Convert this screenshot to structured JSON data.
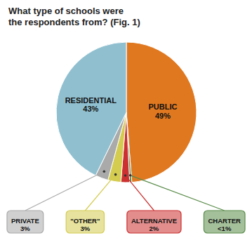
{
  "chart_data": {
    "type": "pie",
    "title": "What type of schools were\nthe respondents from? (Fig. 1)",
    "categories": [
      "PUBLIC",
      "CHARTER",
      "ALTERNATIVE",
      "\"OTHER\"",
      "PRIVATE",
      "RESIDENTIAL"
    ],
    "values": [
      49,
      0.5,
      2,
      3,
      3,
      43
    ],
    "value_labels": [
      "49%",
      "<1%",
      "2%",
      "3%",
      "3%",
      "43%"
    ],
    "colors": [
      "#E07820",
      "#5A8C4A",
      "#CC3030",
      "#D4CC50",
      "#AAAAAA",
      "#90C0D0"
    ],
    "data_labels": true
  }
}
